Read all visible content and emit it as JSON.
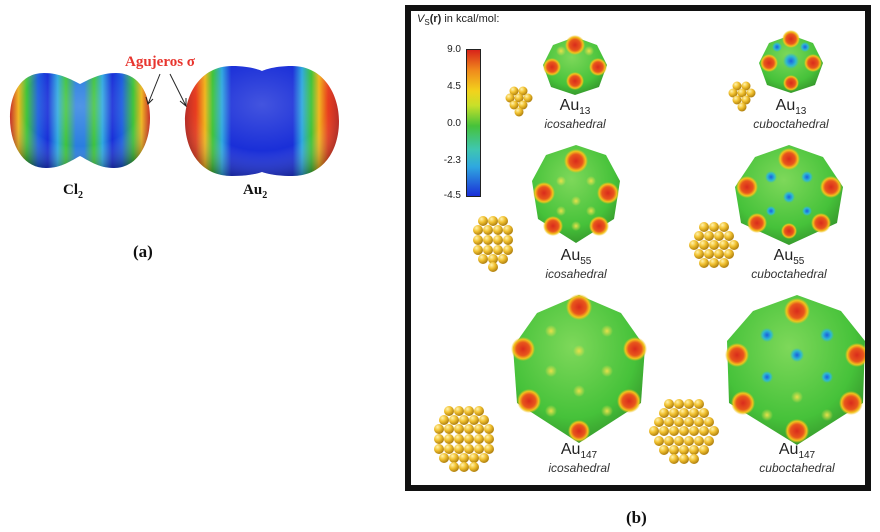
{
  "panel_a": {
    "annotation": "Agujeros σ",
    "molecules": [
      {
        "name": "Cl",
        "subscript": "2"
      },
      {
        "name": "Au",
        "subscript": "2"
      }
    ],
    "panel_label": "(a)"
  },
  "panel_b": {
    "colorbar": {
      "title_symbol": "V",
      "title_subscript": "S",
      "title_arg": "(r)",
      "title_rest": " in kcal/mol:",
      "ticks": [
        "9.0",
        "4.5",
        "0.0",
        "-2.3",
        "-4.5"
      ]
    },
    "clusters": [
      {
        "element": "Au",
        "size": "13",
        "shape": "icosahedral"
      },
      {
        "element": "Au",
        "size": "13",
        "shape": "cuboctahedral"
      },
      {
        "element": "Au",
        "size": "55",
        "shape": "icosahedral"
      },
      {
        "element": "Au",
        "size": "55",
        "shape": "cuboctahedral"
      },
      {
        "element": "Au",
        "size": "147",
        "shape": "icosahedral"
      },
      {
        "element": "Au",
        "size": "147",
        "shape": "cuboctahedral"
      }
    ],
    "panel_label": "(b)"
  },
  "colors": {
    "annotation": "#e8352e",
    "gold": "#f2c230",
    "surface_green": "#46c23a",
    "surface_red": "#d92b1c",
    "surface_blue": "#1a2fd8",
    "frame": "#111111"
  }
}
